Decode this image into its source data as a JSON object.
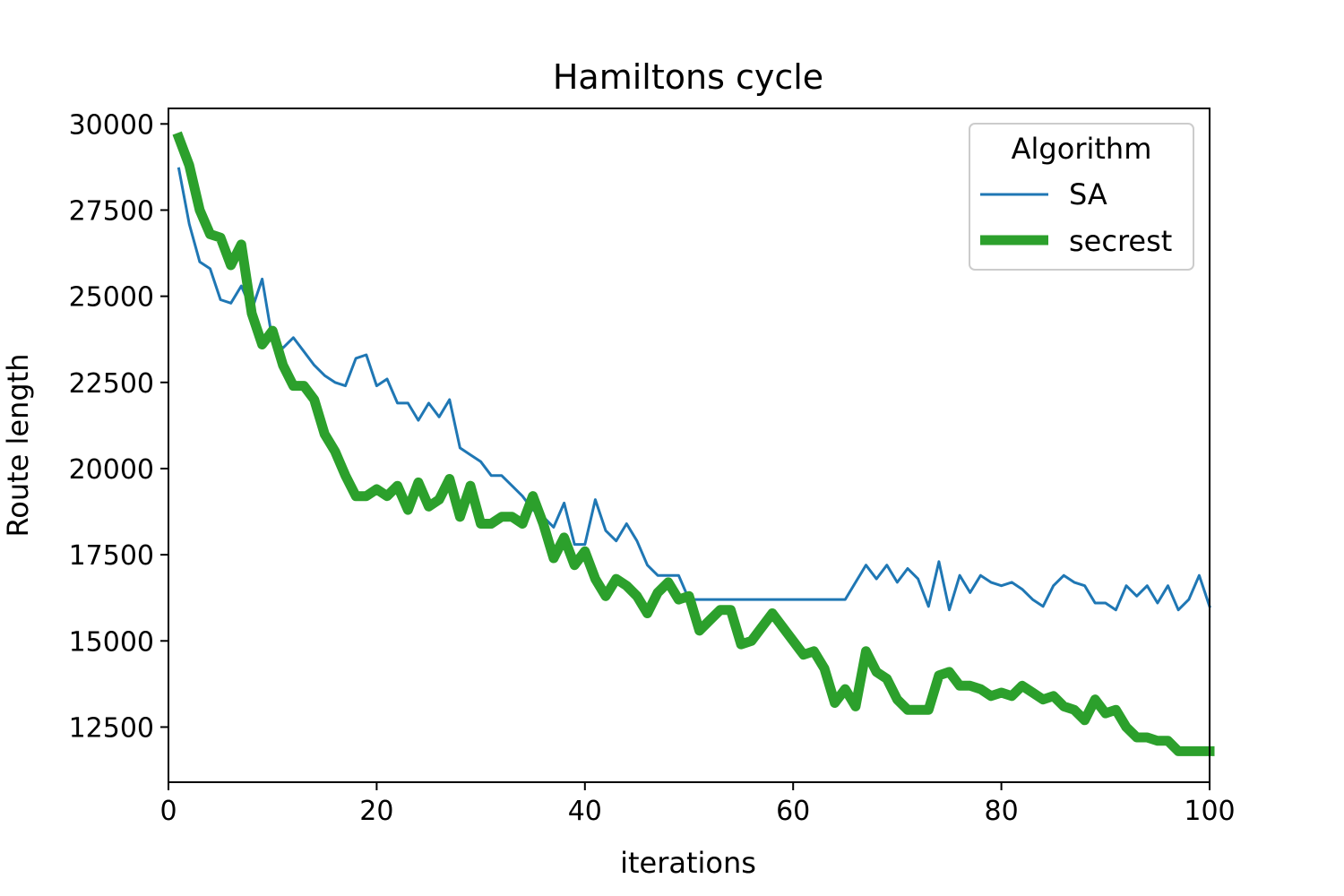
{
  "chart_data": {
    "type": "line",
    "title": "Hamiltons cycle",
    "xlabel": "iterations",
    "ylabel": "Route length",
    "xlim": [
      0,
      100
    ],
    "ylim": [
      10900,
      30450
    ],
    "xticks": [
      0,
      20,
      40,
      60,
      80,
      100
    ],
    "yticks": [
      12500,
      15000,
      17500,
      20000,
      22500,
      25000,
      27500,
      30000
    ],
    "grid": false,
    "legend": {
      "title": "Algorithm",
      "position": "top-right"
    },
    "x": [
      1,
      2,
      3,
      4,
      5,
      6,
      7,
      8,
      9,
      10,
      11,
      12,
      13,
      14,
      15,
      16,
      17,
      18,
      19,
      20,
      21,
      22,
      23,
      24,
      25,
      26,
      27,
      28,
      29,
      30,
      31,
      32,
      33,
      34,
      35,
      36,
      37,
      38,
      39,
      40,
      41,
      42,
      43,
      44,
      45,
      46,
      47,
      48,
      49,
      50,
      51,
      52,
      53,
      54,
      55,
      56,
      57,
      58,
      59,
      60,
      61,
      62,
      63,
      64,
      65,
      66,
      67,
      68,
      69,
      70,
      71,
      72,
      73,
      74,
      75,
      76,
      77,
      78,
      79,
      80,
      81,
      82,
      83,
      84,
      85,
      86,
      87,
      88,
      89,
      90,
      91,
      92,
      93,
      94,
      95,
      96,
      97,
      98,
      99,
      100
    ],
    "series": [
      {
        "name": "SA",
        "color": "#1f77b4",
        "values": [
          28700,
          27100,
          26000,
          25800,
          24900,
          24800,
          25300,
          24600,
          25500,
          23700,
          23500,
          23800,
          23400,
          23000,
          22700,
          22500,
          22400,
          23200,
          23300,
          22400,
          22600,
          21900,
          21900,
          21400,
          21900,
          21500,
          22000,
          20600,
          20400,
          20200,
          19800,
          19800,
          19500,
          19200,
          18800,
          18600,
          18300,
          19000,
          17800,
          17800,
          19100,
          18200,
          17900,
          18400,
          17900,
          17200,
          16900,
          16900,
          16900,
          16200,
          16200,
          16200,
          16200,
          16200,
          16200,
          16200,
          16200,
          16200,
          16200,
          16200,
          16200,
          16200,
          16200,
          16200,
          16200,
          16700,
          17200,
          16800,
          17200,
          16700,
          17100,
          16800,
          16000,
          17300,
          15900,
          16900,
          16400,
          16900,
          16700,
          16600,
          16700,
          16500,
          16200,
          16000,
          16600,
          16900,
          16700,
          16600,
          16100,
          16100,
          15900,
          16600,
          16300,
          16600,
          16100,
          16600,
          15900,
          16200,
          16900,
          16000
        ]
      },
      {
        "name": "secrest",
        "color": "#2ca02c",
        "values": [
          29600,
          28800,
          27500,
          26800,
          26700,
          25900,
          26500,
          24500,
          23600,
          24000,
          23000,
          22400,
          22400,
          22000,
          21000,
          20500,
          19800,
          19200,
          19200,
          19400,
          19200,
          19500,
          18800,
          19600,
          18900,
          19100,
          19700,
          18600,
          19500,
          18400,
          18400,
          18600,
          18600,
          18400,
          19200,
          18400,
          17400,
          18000,
          17200,
          17600,
          16800,
          16300,
          16800,
          16600,
          16300,
          15800,
          16400,
          16700,
          16200,
          16300,
          15300,
          15600,
          15900,
          15900,
          14900,
          15000,
          15400,
          15800,
          15400,
          15000,
          14600,
          14700,
          14200,
          13200,
          13600,
          13100,
          14700,
          14100,
          13900,
          13300,
          13000,
          13000,
          13000,
          14000,
          14100,
          13700,
          13700,
          13600,
          13400,
          13500,
          13400,
          13700,
          13500,
          13300,
          13400,
          13100,
          13000,
          12700,
          13300,
          12900,
          13000,
          12500,
          12200,
          12200,
          12100,
          12100,
          11800,
          11800,
          11800,
          11800
        ]
      }
    ]
  }
}
